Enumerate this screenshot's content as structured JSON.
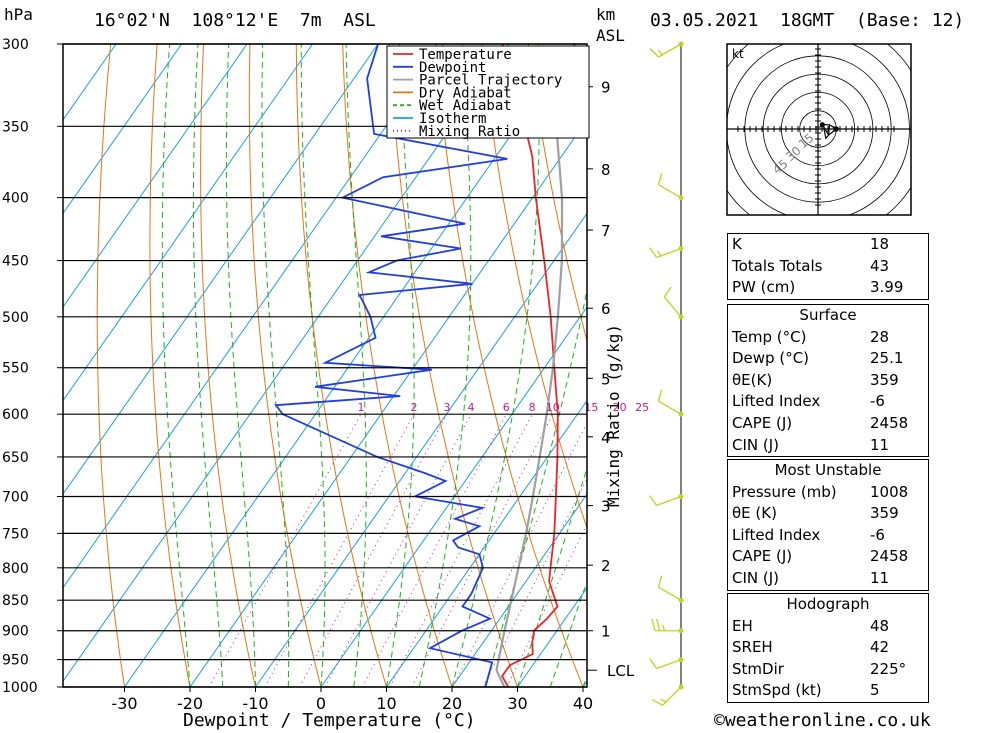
{
  "header": {
    "pressure_unit": "hPa",
    "location": "16°02'N  108°12'E  7m  ASL",
    "km_label": "km",
    "asl_label": "ASL",
    "datetime": "03.05.2021  18GMT  (Base: 12)"
  },
  "footer": {
    "x_axis_label": "Dewpoint / Temperature (°C)",
    "credit": "©weatheronline.co.uk"
  },
  "hodograph": {
    "unit": "kt",
    "ring_labels": [
      "15",
      "30",
      "45"
    ]
  },
  "legend": [
    "Temperature",
    "Dewpoint",
    "Parcel Trajectory",
    "Dry Adiabat",
    "Wet Adiabat",
    "Isotherm",
    "Mixing Ratio"
  ],
  "colors": {
    "temperature": "#e8262a",
    "dewpoint": "#1f3fe0",
    "parcel": "#a0a0a0",
    "dry_adiabat": "#e07818",
    "wet_adiabat": "#20b020",
    "isotherm": "#1ca0e0",
    "mixing_ratio": "#d01890",
    "wind": "#b8d820"
  },
  "chart_data": {
    "type": "line",
    "subtype": "skew-T log-P diagram",
    "xlabel": "Dewpoint / Temperature (°C)",
    "ylabel": "hPa",
    "xlim": [
      -40,
      40
    ],
    "ylim": [
      1000,
      300
    ],
    "y_scale": "log",
    "pressure_ticks": [
      300,
      350,
      400,
      450,
      500,
      550,
      600,
      650,
      700,
      750,
      800,
      850,
      900,
      950,
      1000
    ],
    "temperature_ticks": [
      -30,
      -20,
      -10,
      0,
      10,
      20,
      30,
      40
    ],
    "height_km_ticks": [
      {
        "label": "1",
        "pressure": 900
      },
      {
        "label": "2",
        "pressure": 796
      },
      {
        "label": "3",
        "pressure": 712
      },
      {
        "label": "4",
        "pressure": 626
      },
      {
        "label": "5",
        "pressure": 561
      },
      {
        "label": "6",
        "pressure": 492
      },
      {
        "label": "7",
        "pressure": 425
      },
      {
        "label": "8",
        "pressure": 379
      },
      {
        "label": "9",
        "pressure": 325
      }
    ],
    "lcl": {
      "label": "LCL",
      "pressure": 969
    },
    "secondary_axis_label": "Mixing Ratio (g/kg)",
    "mixing_ratio_labels": [
      "1",
      "2",
      "3",
      "4",
      "6",
      "8",
      "10",
      "15",
      "20",
      "25"
    ],
    "series": [
      {
        "name": "Temperature",
        "points": [
          [
            1000,
            28.6
          ],
          [
            980,
            26.5
          ],
          [
            960,
            26.5
          ],
          [
            940,
            28.8
          ],
          [
            920,
            27.5
          ],
          [
            900,
            26.5
          ],
          [
            880,
            27.2
          ],
          [
            860,
            27.5
          ],
          [
            840,
            25.5
          ],
          [
            820,
            23.5
          ],
          [
            800,
            22.3
          ],
          [
            750,
            19.2
          ],
          [
            700,
            15.5
          ],
          [
            650,
            11.5
          ],
          [
            600,
            7.0
          ],
          [
            550,
            1.5
          ],
          [
            500,
            -4.5
          ],
          [
            450,
            -11.5
          ],
          [
            400,
            -19.5
          ],
          [
            370,
            -24.5
          ],
          [
            340,
            -31.0
          ],
          [
            300,
            -41.0
          ]
        ]
      },
      {
        "name": "Dewpoint",
        "points": [
          [
            1000,
            25.1
          ],
          [
            955,
            23.5
          ],
          [
            930,
            12.5
          ],
          [
            900,
            15.5
          ],
          [
            880,
            18.5
          ],
          [
            860,
            13.0
          ],
          [
            840,
            13.0
          ],
          [
            800,
            12.0
          ],
          [
            780,
            10.0
          ],
          [
            770,
            6.0
          ],
          [
            760,
            4.5
          ],
          [
            740,
            7.0
          ],
          [
            730,
            2.5
          ],
          [
            715,
            5.5
          ],
          [
            700,
            -6.0
          ],
          [
            680,
            -3.0
          ],
          [
            670,
            -7.0
          ],
          [
            650,
            -16.0
          ],
          [
            600,
            -35.0
          ],
          [
            590,
            -37.0
          ],
          [
            580,
            -19.0
          ],
          [
            570,
            -33.0
          ],
          [
            552,
            -17.0
          ],
          [
            545,
            -34.0
          ],
          [
            520,
            -29.0
          ],
          [
            500,
            -32.0
          ],
          [
            480,
            -36.0
          ],
          [
            470,
            -20.0
          ],
          [
            460,
            -37.0
          ],
          [
            450,
            -34.0
          ],
          [
            440,
            -25.5
          ],
          [
            430,
            -39.0
          ],
          [
            420,
            -27.5
          ],
          [
            400,
            -49.0
          ],
          [
            385,
            -45.0
          ],
          [
            372,
            -28.0
          ],
          [
            355,
            -51.0
          ],
          [
            320,
            -58.0
          ],
          [
            300,
            -60.0
          ]
        ]
      },
      {
        "name": "Parcel Trajectory",
        "points": [
          [
            1000,
            28.0
          ],
          [
            969,
            25.0
          ],
          [
            900,
            22.0
          ],
          [
            850,
            19.8
          ],
          [
            800,
            17.4
          ],
          [
            750,
            14.9
          ],
          [
            700,
            12.0
          ],
          [
            650,
            8.8
          ],
          [
            600,
            5.3
          ],
          [
            550,
            1.3
          ],
          [
            500,
            -3.4
          ],
          [
            450,
            -8.8
          ],
          [
            400,
            -15.5
          ],
          [
            350,
            -24.0
          ],
          [
            330,
            -28.0
          ],
          [
            320,
            -30.0
          ]
        ]
      }
    ],
    "wind_profile": [
      {
        "pressure": 1000,
        "speed_kt": 5,
        "dir_deg": 225
      },
      {
        "pressure": 950,
        "speed_kt": 10,
        "dir_deg": 250
      },
      {
        "pressure": 900,
        "speed_kt": 15,
        "dir_deg": 270
      },
      {
        "pressure": 850,
        "speed_kt": 10,
        "dir_deg": 300
      },
      {
        "pressure": 700,
        "speed_kt": 10,
        "dir_deg": 250
      },
      {
        "pressure": 600,
        "speed_kt": 10,
        "dir_deg": 300
      },
      {
        "pressure": 500,
        "speed_kt": 10,
        "dir_deg": 320
      },
      {
        "pressure": 440,
        "speed_kt": 5,
        "dir_deg": 250
      },
      {
        "pressure": 400,
        "speed_kt": 10,
        "dir_deg": 300
      },
      {
        "pressure": 300,
        "speed_kt": 5,
        "dir_deg": 240
      }
    ]
  },
  "indices": [
    {
      "label": "K",
      "value": "18"
    },
    {
      "label": "Totals Totals",
      "value": "43"
    },
    {
      "label": "PW (cm)",
      "value": "3.99"
    }
  ],
  "surface": {
    "title": "Surface",
    "rows": [
      {
        "label": "Temp (°C)",
        "value": "28"
      },
      {
        "label": "Dewp (°C)",
        "value": "25.1"
      },
      {
        "label": "θE(K)",
        "value": "359"
      },
      {
        "label": "Lifted Index",
        "value": "-6"
      },
      {
        "label": "CAPE (J)",
        "value": "2458"
      },
      {
        "label": "CIN (J)",
        "value": "11"
      }
    ]
  },
  "most_unstable": {
    "title": "Most Unstable",
    "rows": [
      {
        "label": "Pressure (mb)",
        "value": "1008"
      },
      {
        "label": "θE (K)",
        "value": "359"
      },
      {
        "label": "Lifted Index",
        "value": "-6"
      },
      {
        "label": "CAPE (J)",
        "value": "2458"
      },
      {
        "label": "CIN (J)",
        "value": "11"
      }
    ]
  },
  "hodograph_table": {
    "title": "Hodograph",
    "rows": [
      {
        "label": "EH",
        "value": "48"
      },
      {
        "label": "SREH",
        "value": "42"
      },
      {
        "label": "StmDir",
        "value": "225°"
      },
      {
        "label": "StmSpd (kt)",
        "value": "5"
      }
    ]
  }
}
